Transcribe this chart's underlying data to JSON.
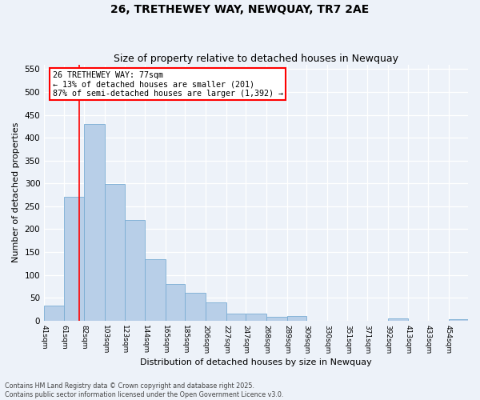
{
  "title": "26, TRETHEWEY WAY, NEWQUAY, TR7 2AE",
  "subtitle": "Size of property relative to detached houses in Newquay",
  "xlabel": "Distribution of detached houses by size in Newquay",
  "ylabel": "Number of detached properties",
  "bar_color": "#b8cfe8",
  "bar_edge_color": "#7aadd4",
  "background_color": "#edf2f9",
  "grid_color": "#ffffff",
  "categories": [
    "41sqm",
    "61sqm",
    "82sqm",
    "103sqm",
    "123sqm",
    "144sqm",
    "165sqm",
    "185sqm",
    "206sqm",
    "227sqm",
    "247sqm",
    "268sqm",
    "289sqm",
    "309sqm",
    "330sqm",
    "351sqm",
    "371sqm",
    "392sqm",
    "413sqm",
    "433sqm",
    "454sqm"
  ],
  "values": [
    32,
    270,
    430,
    298,
    220,
    135,
    80,
    60,
    40,
    15,
    16,
    8,
    10,
    0,
    0,
    0,
    0,
    5,
    0,
    0,
    3
  ],
  "property_line_x": 77,
  "annotation_text": "26 TRETHEWEY WAY: 77sqm\n← 13% of detached houses are smaller (201)\n87% of semi-detached houses are larger (1,392) →",
  "footer1": "Contains HM Land Registry data © Crown copyright and database right 2025.",
  "footer2": "Contains public sector information licensed under the Open Government Licence v3.0.",
  "ylim": [
    0,
    560
  ],
  "yticks": [
    0,
    50,
    100,
    150,
    200,
    250,
    300,
    350,
    400,
    450,
    500,
    550
  ],
  "bar_edges": [
    41,
    61,
    82,
    103,
    123,
    144,
    165,
    185,
    206,
    227,
    247,
    268,
    289,
    309,
    330,
    351,
    371,
    392,
    413,
    433,
    454
  ]
}
